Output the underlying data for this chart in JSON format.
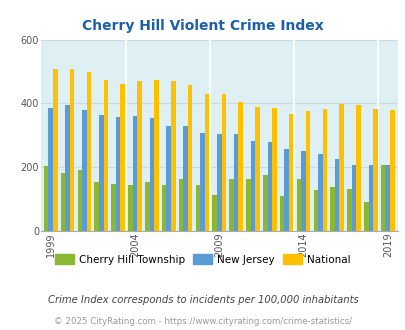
{
  "title": "Cherry Hill Violent Crime Index",
  "years": [
    1999,
    2000,
    2001,
    2002,
    2003,
    2004,
    2005,
    2006,
    2007,
    2008,
    2009,
    2010,
    2011,
    2012,
    2013,
    2014,
    2015,
    2016,
    2017,
    2018,
    2019
  ],
  "cherry_hill": [
    205,
    183,
    190,
    155,
    147,
    143,
    155,
    143,
    163,
    145,
    113,
    162,
    163,
    175,
    110,
    163,
    128,
    138,
    132,
    92,
    207
  ],
  "new_jersey": [
    385,
    395,
    378,
    363,
    357,
    360,
    355,
    328,
    328,
    308,
    305,
    303,
    283,
    278,
    258,
    252,
    242,
    225,
    207,
    207,
    207
  ],
  "national": [
    507,
    507,
    497,
    472,
    462,
    469,
    472,
    469,
    458,
    428,
    428,
    404,
    390,
    387,
    368,
    375,
    383,
    397,
    395,
    383,
    379
  ],
  "color_cherry": "#8ab832",
  "color_nj": "#5b9bd5",
  "color_national": "#ffc000",
  "bg_color": "#dff0f5",
  "ylim": [
    0,
    600
  ],
  "yticks": [
    0,
    200,
    400,
    600
  ],
  "xtick_years": [
    1999,
    2004,
    2009,
    2014,
    2019
  ],
  "legend_labels": [
    "Cherry Hill Township",
    "New Jersey",
    "National"
  ],
  "footnote1": "Crime Index corresponds to incidents per 100,000 inhabitants",
  "footnote2": "© 2025 CityRating.com - https://www.cityrating.com/crime-statistics/",
  "title_color": "#1a5fa8",
  "footnote1_color": "#444444",
  "footnote2_color": "#999999",
  "grid_color": "#c8dce0"
}
